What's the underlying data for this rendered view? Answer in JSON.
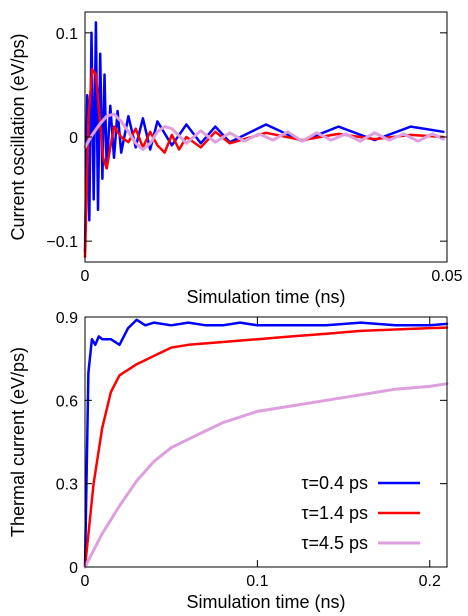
{
  "chart_data": [
    {
      "type": "line",
      "xlabel": "Simulation time (ns)",
      "ylabel": "Current oscillation (eV/ps)",
      "xlim": [
        0,
        0.05
      ],
      "ylim": [
        -0.12,
        0.12
      ],
      "xticks": [
        {
          "value": 0,
          "label": "0"
        },
        {
          "value": 0.05,
          "label": "0.05"
        }
      ],
      "yticks": [
        {
          "value": 0.1,
          "label": "0.1"
        },
        {
          "value": 0,
          "label": "0"
        },
        {
          "value": -0.1,
          "label": "−0.1"
        }
      ],
      "grid": false,
      "legend": false,
      "series": [
        {
          "color": "#0000ff",
          "x": [
            0,
            0.0003,
            0.0006,
            0.0009,
            0.0012,
            0.0015,
            0.0018,
            0.0021,
            0.0024,
            0.0027,
            0.003,
            0.0035,
            0.004,
            0.0045,
            0.005,
            0.006,
            0.007,
            0.008,
            0.009,
            0.01,
            0.012,
            0.014,
            0.016,
            0.018,
            0.02,
            0.025,
            0.03,
            0.035,
            0.04,
            0.045,
            0.0495
          ],
          "y": [
            -0.11,
            0.04,
            -0.08,
            0.1,
            -0.06,
            0.11,
            -0.07,
            0.08,
            -0.04,
            0.06,
            -0.03,
            0.03,
            -0.02,
            0.025,
            -0.015,
            0.02,
            -0.01,
            0.018,
            -0.012,
            0.015,
            -0.008,
            0.012,
            -0.006,
            0.01,
            -0.005,
            0.012,
            -0.004,
            0.01,
            -0.003,
            0.01,
            0.005
          ]
        },
        {
          "color": "#ff0000",
          "x": [
            0,
            0.0005,
            0.001,
            0.0015,
            0.002,
            0.0025,
            0.003,
            0.0035,
            0.004,
            0.005,
            0.006,
            0.007,
            0.008,
            0.009,
            0.01,
            0.011,
            0.012,
            0.013,
            0.014,
            0.016,
            0.018,
            0.02,
            0.025,
            0.03,
            0.035,
            0.04,
            0.045,
            0.0495
          ],
          "y": [
            -0.115,
            0.02,
            0.065,
            0.06,
            0.02,
            -0.02,
            -0.03,
            -0.01,
            0.01,
            0.0,
            -0.005,
            0.008,
            -0.01,
            0.005,
            -0.008,
            -0.015,
            0.002,
            -0.012,
            0.0,
            -0.01,
            0.005,
            -0.006,
            0.004,
            -0.003,
            0.003,
            -0.002,
            0.002,
            0.0
          ]
        },
        {
          "color": "#dda0dd",
          "x": [
            0,
            0.001,
            0.002,
            0.003,
            0.004,
            0.005,
            0.006,
            0.007,
            0.008,
            0.009,
            0.01,
            0.011,
            0.012,
            0.014,
            0.016,
            0.018,
            0.02,
            0.022,
            0.024,
            0.026,
            0.028,
            0.03,
            0.032,
            0.034,
            0.036,
            0.038,
            0.04,
            0.042,
            0.044,
            0.046,
            0.048,
            0.0495
          ],
          "y": [
            -0.01,
            0.002,
            0.012,
            0.02,
            0.022,
            0.015,
            0.005,
            -0.006,
            -0.012,
            -0.006,
            0.005,
            0.01,
            0.008,
            -0.006,
            0.006,
            -0.005,
            0.004,
            -0.004,
            0.003,
            -0.003,
            0.005,
            -0.004,
            0.004,
            -0.003,
            0.003,
            -0.004,
            0.004,
            -0.003,
            0.003,
            -0.004,
            0.003,
            -0.002
          ]
        }
      ]
    },
    {
      "type": "line",
      "xlabel": "Simulation time (ns)",
      "ylabel": "Thermal current (eV/ps)",
      "xlim": [
        0,
        0.21
      ],
      "ylim": [
        0,
        0.9
      ],
      "xticks": [
        {
          "value": 0,
          "label": "0"
        },
        {
          "value": 0.1,
          "label": "0.1"
        },
        {
          "value": 0.2,
          "label": "0.2"
        }
      ],
      "yticks": [
        {
          "value": 0,
          "label": "0"
        },
        {
          "value": 0.3,
          "label": "0.3"
        },
        {
          "value": 0.6,
          "label": "0.6"
        },
        {
          "value": 0.9,
          "label": "0.9"
        }
      ],
      "grid": false,
      "legend": "bottom-right",
      "series": [
        {
          "name": "τ=0.4 ps",
          "color": "#0000ff",
          "x": [
            0,
            0.002,
            0.004,
            0.006,
            0.008,
            0.01,
            0.015,
            0.02,
            0.025,
            0.03,
            0.035,
            0.04,
            0.05,
            0.06,
            0.07,
            0.08,
            0.09,
            0.1,
            0.12,
            0.14,
            0.16,
            0.18,
            0.2,
            0.21
          ],
          "y": [
            0.0,
            0.7,
            0.82,
            0.8,
            0.83,
            0.82,
            0.82,
            0.8,
            0.86,
            0.89,
            0.87,
            0.88,
            0.87,
            0.88,
            0.87,
            0.87,
            0.88,
            0.87,
            0.87,
            0.87,
            0.88,
            0.87,
            0.87,
            0.875
          ]
        },
        {
          "name": "τ=1.4 ps",
          "color": "#ff0000",
          "x": [
            0,
            0.005,
            0.01,
            0.015,
            0.02,
            0.03,
            0.04,
            0.05,
            0.06,
            0.08,
            0.1,
            0.12,
            0.14,
            0.16,
            0.18,
            0.2,
            0.21
          ],
          "y": [
            0.0,
            0.3,
            0.5,
            0.63,
            0.69,
            0.73,
            0.76,
            0.79,
            0.8,
            0.81,
            0.82,
            0.83,
            0.84,
            0.85,
            0.855,
            0.86,
            0.862
          ]
        },
        {
          "name": "τ=4.5 ps",
          "color": "#dda0dd",
          "x": [
            0,
            0.005,
            0.01,
            0.02,
            0.03,
            0.04,
            0.05,
            0.06,
            0.07,
            0.08,
            0.09,
            0.1,
            0.12,
            0.14,
            0.16,
            0.18,
            0.2,
            0.21
          ],
          "y": [
            0.0,
            0.06,
            0.12,
            0.22,
            0.31,
            0.38,
            0.43,
            0.46,
            0.49,
            0.52,
            0.54,
            0.56,
            0.58,
            0.6,
            0.62,
            0.64,
            0.65,
            0.66
          ]
        }
      ]
    }
  ]
}
